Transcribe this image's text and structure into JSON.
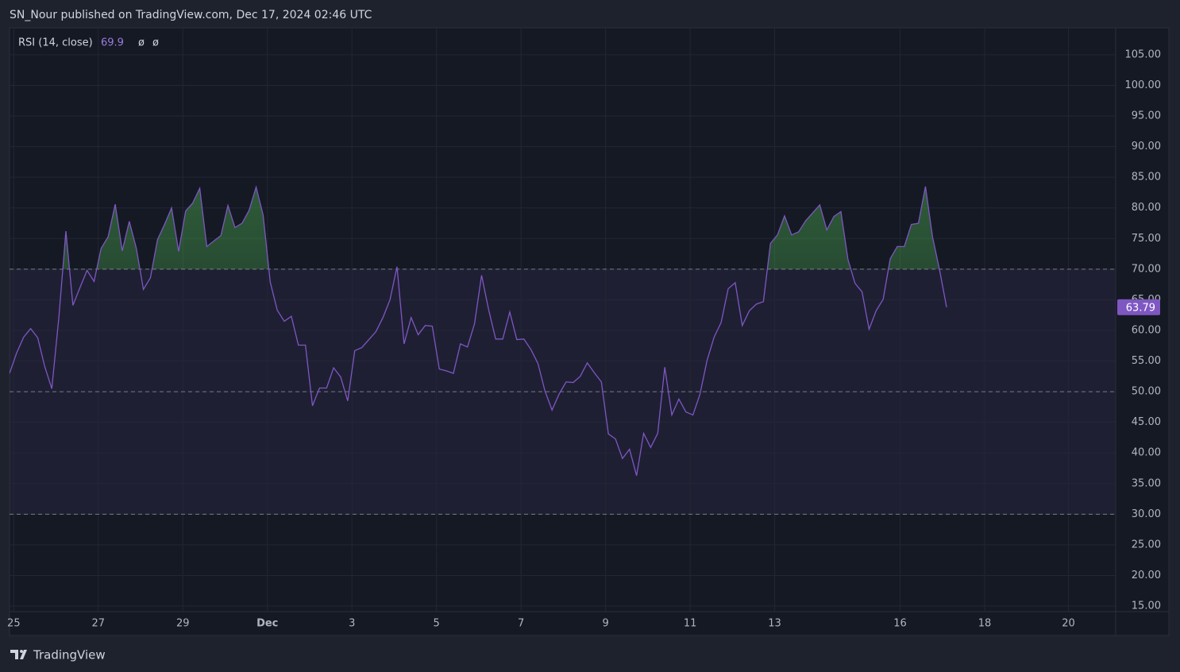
{
  "chart_data": {
    "type": "line",
    "title": "SN_Nour published on TradingView.com, Dec 17, 2024 02:46 UTC",
    "indicator": "RSI (14, close)",
    "indicator_flags": [
      "ø",
      "ø"
    ],
    "brand": "TradingView",
    "series": [
      {
        "name": "RSI",
        "color": "#7e57c2",
        "values": [
          53.0,
          56.3,
          58.9,
          60.3,
          58.8,
          54.1,
          50.5,
          62.1,
          76.2,
          64.1,
          67.0,
          69.8,
          68.0,
          73.4,
          75.3,
          80.6,
          73.0,
          77.8,
          73.4,
          66.7,
          68.6,
          74.8,
          77.3,
          80.0,
          72.9,
          79.5,
          80.8,
          83.2,
          73.7,
          74.6,
          75.5,
          80.4,
          76.8,
          77.5,
          79.6,
          83.4,
          78.8,
          67.9,
          63.3,
          61.5,
          62.3,
          57.6,
          57.6,
          47.7,
          50.6,
          50.6,
          53.9,
          52.4,
          48.5,
          56.7,
          57.2,
          58.5,
          59.8,
          62.1,
          65.0,
          70.4,
          57.8,
          62.1,
          59.3,
          60.8,
          60.7,
          53.7,
          53.4,
          53.0,
          57.8,
          57.3,
          61.1,
          69.0,
          63.4,
          58.6,
          58.6,
          63.0,
          58.5,
          58.6,
          56.9,
          54.6,
          50.1,
          47.0,
          49.6,
          51.6,
          51.5,
          52.5,
          54.7,
          53.1,
          51.6,
          43.1,
          42.3,
          39.1,
          40.6,
          36.3,
          43.2,
          40.9,
          43.2,
          54.0,
          46.2,
          48.8,
          46.7,
          46.2,
          49.6,
          55.1,
          58.9,
          61.3,
          66.8,
          67.8,
          60.8,
          63.2,
          64.3,
          64.7,
          74.2,
          75.6,
          78.7,
          75.6,
          76.1,
          77.9,
          79.2,
          80.5,
          76.4,
          78.6,
          79.4,
          71.6,
          67.7,
          66.3,
          60.2,
          63.2,
          65.1,
          71.7,
          73.7,
          73.7,
          77.3,
          77.5,
          83.5,
          75.3,
          69.9,
          63.79
        ]
      }
    ],
    "levels": [
      70,
      50,
      30
    ],
    "band": [
      30,
      70
    ],
    "band_color": "#7e57c2",
    "overbought_color": "#4caf50",
    "xlim": [
      0,
      157
    ],
    "xticks": [
      {
        "value": 0.6,
        "label": "25"
      },
      {
        "value": 12.6,
        "label": "27"
      },
      {
        "value": 24.6,
        "label": "29"
      },
      {
        "value": 36.6,
        "label": "Dec"
      },
      {
        "value": 48.6,
        "label": "3"
      },
      {
        "value": 60.6,
        "label": "5"
      },
      {
        "value": 72.6,
        "label": "7"
      },
      {
        "value": 84.6,
        "label": "9"
      },
      {
        "value": 96.6,
        "label": "11"
      },
      {
        "value": 108.6,
        "label": "13"
      },
      {
        "value": 126.4,
        "label": "16"
      },
      {
        "value": 138.4,
        "label": "18"
      },
      {
        "value": 150.3,
        "label": "20"
      }
    ],
    "ylim": [
      14.1,
      109.4
    ],
    "yticks": [
      {
        "value": 15,
        "label": "15.00"
      },
      {
        "value": 20,
        "label": "20.00"
      },
      {
        "value": 25,
        "label": "25.00"
      },
      {
        "value": 30,
        "label": "30.00"
      },
      {
        "value": 35,
        "label": "35.00"
      },
      {
        "value": 40,
        "label": "40.00"
      },
      {
        "value": 45,
        "label": "45.00"
      },
      {
        "value": 50,
        "label": "50.00"
      },
      {
        "value": 55,
        "label": "55.00"
      },
      {
        "value": 60,
        "label": "60.00"
      },
      {
        "value": 65,
        "label": "65.00"
      },
      {
        "value": 70,
        "label": "70.00"
      },
      {
        "value": 75,
        "label": "75.00"
      },
      {
        "value": 80,
        "label": "80.00"
      },
      {
        "value": 85,
        "label": "85.00"
      },
      {
        "value": 90,
        "label": "90.00"
      },
      {
        "value": 95,
        "label": "95.00"
      },
      {
        "value": 100,
        "label": "100.00"
      },
      {
        "value": 105,
        "label": "105.00"
      }
    ],
    "grid": true
  }
}
